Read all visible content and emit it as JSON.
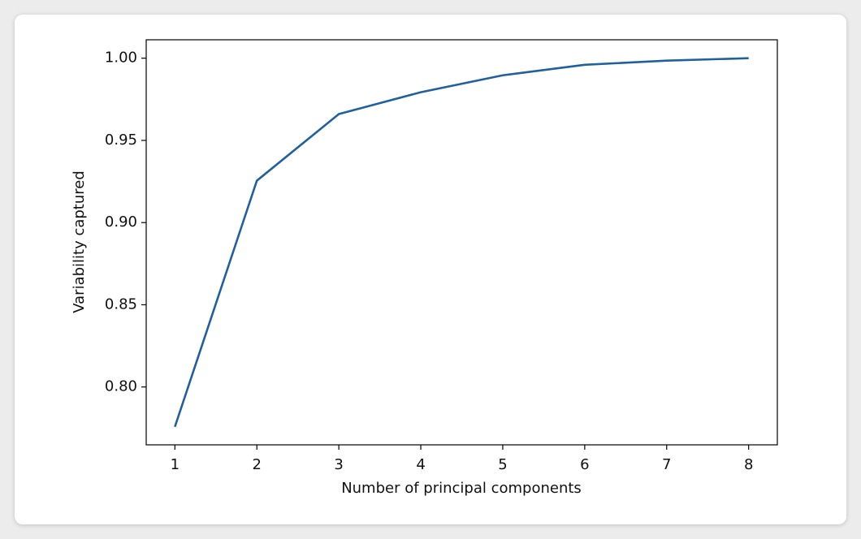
{
  "chart_data": {
    "type": "line",
    "x_label": "Number of principal components",
    "y_label": "Variability captured",
    "x": [
      1,
      2,
      3,
      4,
      5,
      6,
      7,
      8
    ],
    "values": [
      0.7758,
      0.9255,
      0.966,
      0.9793,
      0.9896,
      0.996,
      0.9985,
      1.0
    ],
    "color": "#20609f",
    "xlim": [
      0.65,
      8.35
    ],
    "ylim": [
      0.7648,
      1.0112
    ],
    "xticks": [
      1,
      2,
      3,
      4,
      5,
      6,
      7,
      8
    ],
    "yticks": [
      {
        "value": 0.8,
        "label": "0.80"
      },
      {
        "value": 0.85,
        "label": "0.85"
      },
      {
        "value": 0.9,
        "label": "0.90"
      },
      {
        "value": 0.95,
        "label": "0.95"
      },
      {
        "value": 1.0,
        "label": "1.00"
      }
    ],
    "grid": false
  }
}
